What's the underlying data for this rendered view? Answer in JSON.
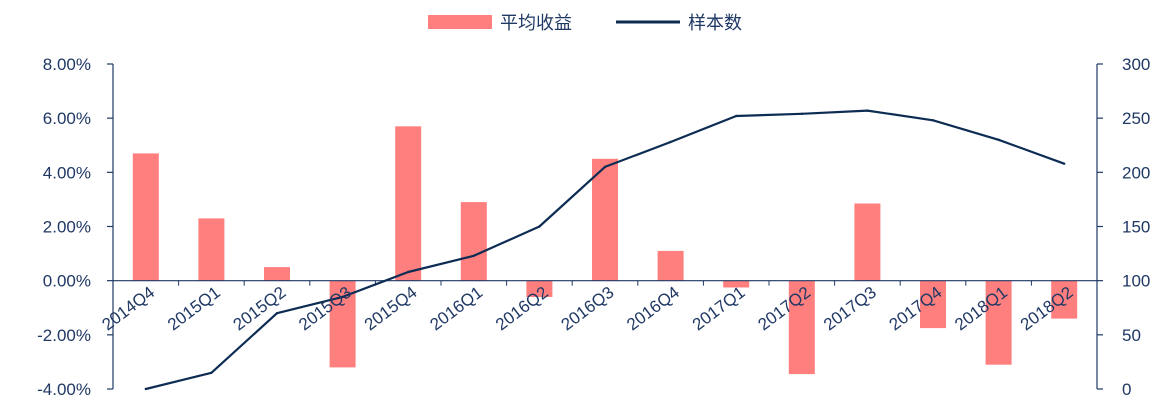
{
  "chart_data": {
    "type": "bar+line",
    "categories": [
      "2014Q4",
      "2015Q1",
      "2015Q2",
      "2015Q3",
      "2015Q4",
      "2016Q1",
      "2016Q2",
      "2016Q3",
      "2016Q4",
      "2017Q1",
      "2017Q2",
      "2017Q3",
      "2017Q4",
      "2018Q1",
      "2018Q2"
    ],
    "series": [
      {
        "name": "平均收益",
        "type": "bar",
        "axis": "left",
        "color": "#ff7f7f",
        "values": [
          4.7,
          2.3,
          0.5,
          -3.2,
          5.7,
          2.9,
          -0.6,
          4.5,
          1.1,
          -0.25,
          -3.45,
          2.85,
          -1.75,
          -3.1,
          -1.4
        ]
      },
      {
        "name": "样本数",
        "type": "line",
        "axis": "right",
        "color": "#0d2c54",
        "values": [
          0,
          15,
          70,
          85,
          108,
          123,
          150,
          205,
          228,
          252,
          254,
          257,
          248,
          230,
          208
        ]
      }
    ],
    "y_left": {
      "min": -4.0,
      "max": 8.0,
      "step": 2.0,
      "tick_labels": [
        "-4.00%",
        "-2.00%",
        "0.00%",
        "2.00%",
        "4.00%",
        "6.00%",
        "8.00%"
      ]
    },
    "y_right": {
      "min": 0,
      "max": 300,
      "step": 50,
      "tick_labels": [
        "0",
        "50",
        "100",
        "150",
        "200",
        "250",
        "300"
      ]
    },
    "grid": false,
    "legend_position": "top-center",
    "title": "",
    "xlabel": "",
    "ylabel": ""
  }
}
